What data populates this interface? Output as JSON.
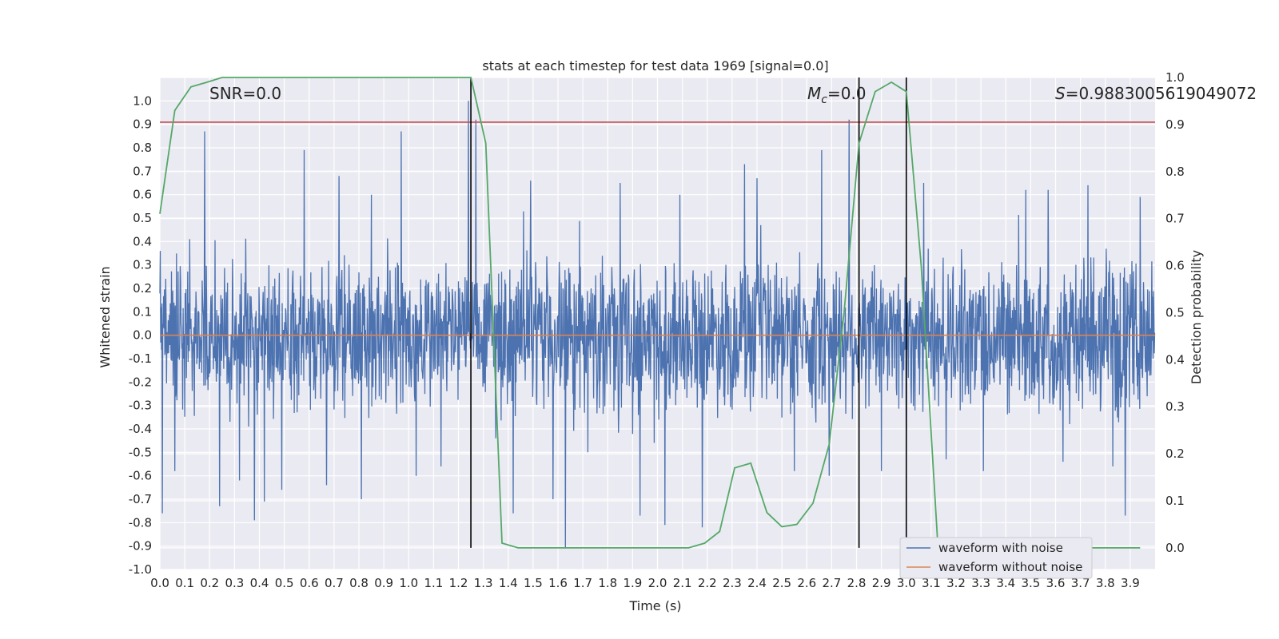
{
  "chart_data": {
    "type": "line",
    "title": "stats at each timestep for test data 1969 [signal=0.0]",
    "xlabel": "Time (s)",
    "ylabel": "Whitened strain",
    "ylabel_right": "Detection probability",
    "xlim": [
      0.0,
      4.0
    ],
    "ylim": [
      -1.0,
      1.1
    ],
    "ylim_right": [
      -0.046,
      1.0
    ],
    "x_ticks": [
      0.0,
      0.1,
      0.2,
      0.3,
      0.4,
      0.5,
      0.6,
      0.7,
      0.8,
      0.9,
      1.0,
      1.1,
      1.2,
      1.3,
      1.4,
      1.5,
      1.6,
      1.7,
      1.8,
      1.9,
      2.0,
      2.1,
      2.2,
      2.3,
      2.4,
      2.5,
      2.6,
      2.7,
      2.8,
      2.9,
      3.0,
      3.1,
      3.2,
      3.3,
      3.4,
      3.5,
      3.6,
      3.7,
      3.8,
      3.9
    ],
    "y_ticks": [
      1.0,
      0.9,
      0.8,
      0.7,
      0.6,
      0.5,
      0.4,
      0.3,
      0.2,
      0.1,
      0.0,
      -0.1,
      -0.2,
      -0.3,
      -0.4,
      -0.5,
      -0.6,
      -0.7,
      -0.8,
      -0.9,
      -1.0
    ],
    "y_ticks_right": [
      1.0,
      0.9,
      0.8,
      0.7,
      0.6,
      0.5,
      0.4,
      0.3,
      0.2,
      0.1,
      0.0
    ],
    "grid": true,
    "legend_position": "lower-right",
    "annotations": {
      "snr": "SNR=0.0",
      "mc": "=0.0",
      "s": "=0.9883005619049072"
    },
    "series": [
      {
        "name": "waveform with noise",
        "color": "#4c72b0",
        "axis": "left",
        "style": "noise",
        "amplitude_typical": 0.25,
        "spikes": [
          [
            0.01,
            -0.76
          ],
          [
            0.06,
            -0.58
          ],
          [
            0.12,
            0.41
          ],
          [
            0.18,
            0.87
          ],
          [
            0.24,
            -0.73
          ],
          [
            0.32,
            -0.62
          ],
          [
            0.38,
            -0.79
          ],
          [
            0.42,
            -0.71
          ],
          [
            0.49,
            -0.66
          ],
          [
            0.58,
            0.79
          ],
          [
            0.67,
            -0.64
          ],
          [
            0.72,
            0.68
          ],
          [
            0.81,
            -0.7
          ],
          [
            0.85,
            0.6
          ],
          [
            0.97,
            0.87
          ],
          [
            1.03,
            -0.6
          ],
          [
            1.13,
            -0.56
          ],
          [
            1.24,
            1.0
          ],
          [
            1.27,
            0.92
          ],
          [
            1.35,
            -0.44
          ],
          [
            1.42,
            -0.76
          ],
          [
            1.49,
            0.66
          ],
          [
            1.58,
            -0.7
          ],
          [
            1.63,
            -0.91
          ],
          [
            1.72,
            -0.5
          ],
          [
            1.85,
            0.65
          ],
          [
            1.93,
            -0.77
          ],
          [
            2.03,
            -0.81
          ],
          [
            2.09,
            0.6
          ],
          [
            2.18,
            -0.82
          ],
          [
            2.35,
            0.73
          ],
          [
            2.4,
            0.67
          ],
          [
            2.55,
            -0.58
          ],
          [
            2.66,
            0.79
          ],
          [
            2.69,
            -0.6
          ],
          [
            2.77,
            0.92
          ],
          [
            2.9,
            -0.58
          ],
          [
            3.0,
            -0.57
          ],
          [
            3.07,
            0.65
          ],
          [
            3.16,
            -0.53
          ],
          [
            3.31,
            -0.58
          ],
          [
            3.48,
            0.62
          ],
          [
            3.57,
            0.62
          ],
          [
            3.63,
            -0.54
          ],
          [
            3.73,
            0.64
          ],
          [
            3.83,
            -0.56
          ],
          [
            3.88,
            -0.77
          ],
          [
            3.94,
            0.59
          ]
        ]
      },
      {
        "name": "waveform without noise",
        "color": "#dd8452",
        "axis": "left",
        "x": [
          0.0,
          4.0
        ],
        "y": [
          0.0,
          0.0
        ]
      },
      {
        "name": "",
        "color": "#55a868",
        "axis": "right",
        "x": [
          0.0,
          0.06,
          0.125,
          0.19,
          0.25,
          0.5,
          0.75,
          1.0,
          1.25,
          1.31,
          1.375,
          1.44,
          1.5,
          1.75,
          2.0,
          2.125,
          2.19,
          2.25,
          2.31,
          2.375,
          2.44,
          2.5,
          2.56,
          2.625,
          2.69,
          2.75,
          2.81,
          2.875,
          2.94,
          3.0,
          3.06,
          3.125,
          3.19,
          3.25,
          3.5,
          3.75,
          3.94
        ],
        "y": [
          0.71,
          0.93,
          0.98,
          0.99,
          1.0,
          1.0,
          1.0,
          1.0,
          1.0,
          0.86,
          0.01,
          0.0,
          0.0,
          0.0,
          0.0,
          0.0,
          0.01,
          0.035,
          0.17,
          0.18,
          0.075,
          0.045,
          0.05,
          0.095,
          0.22,
          0.5,
          0.86,
          0.97,
          0.99,
          0.97,
          0.6,
          0.02,
          0.0,
          0.0,
          0.0,
          0.0,
          0.0
        ]
      }
    ],
    "hlines": [
      {
        "axis": "right",
        "y": 0.905,
        "color": "#c44e52"
      }
    ],
    "vlines": [
      {
        "x": 1.25,
        "color": "#000000"
      },
      {
        "x": 2.81,
        "color": "#000000"
      },
      {
        "x": 3.0,
        "color": "#000000"
      }
    ]
  }
}
